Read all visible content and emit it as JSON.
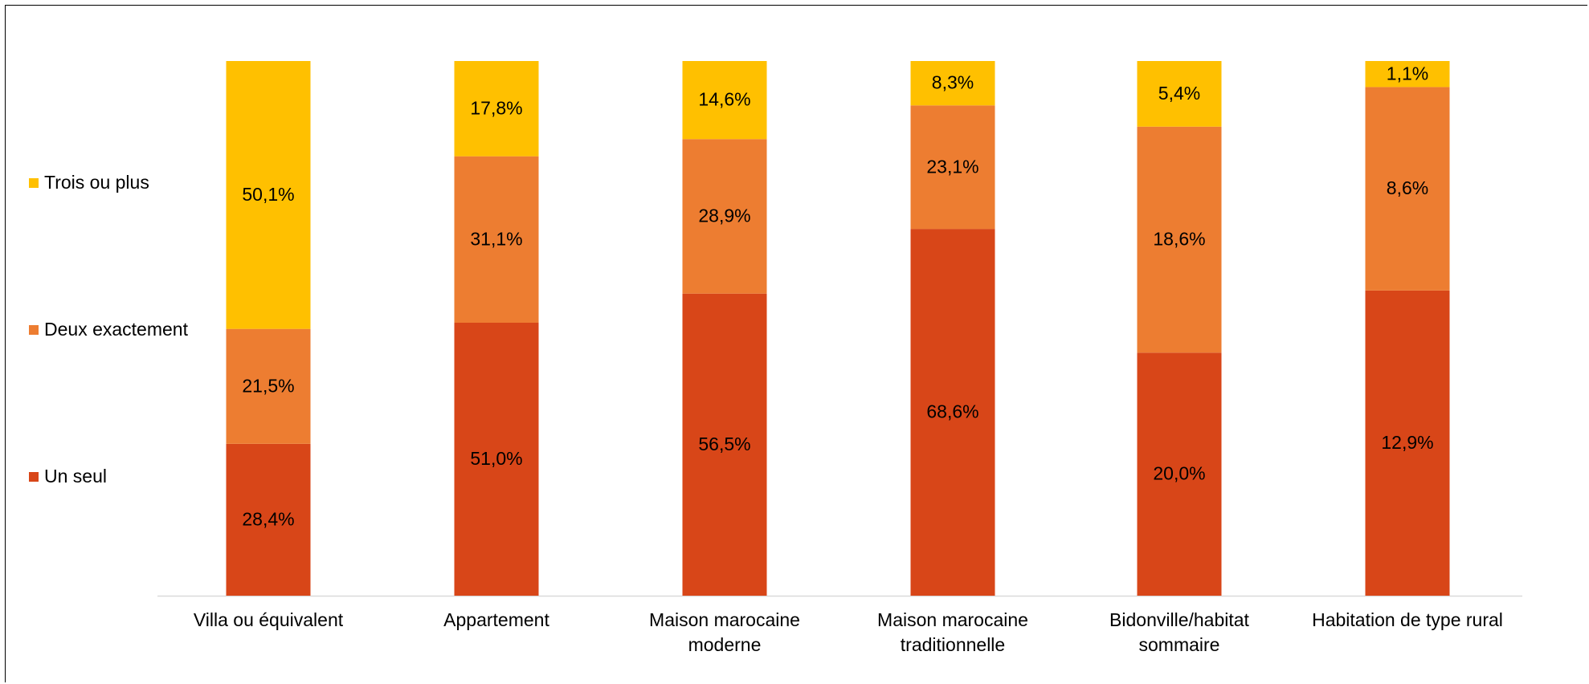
{
  "chart_data": {
    "type": "bar",
    "stacked": "percent",
    "categories": [
      "Villa ou équivalent",
      "Appartement",
      "Maison marocaine\nmoderne",
      "Maison marocaine\ntraditionnelle",
      "Bidonville/habitat\nsommaire",
      "Habitation de type rural"
    ],
    "series": [
      {
        "name": "Un seul",
        "color": "#d84618",
        "values": [
          28.4,
          51.0,
          56.5,
          68.6,
          20.0,
          12.9
        ],
        "value_labels": [
          "28,4%",
          "51,0%",
          "56,5%",
          "68,6%",
          "20,0%",
          "12,9%"
        ]
      },
      {
        "name": "Deux exactement",
        "color": "#ed7d31",
        "values": [
          21.5,
          31.1,
          28.9,
          23.1,
          18.6,
          8.6
        ],
        "value_labels": [
          "21,5%",
          "31,1%",
          "28,9%",
          "23,1%",
          "18,6%",
          "8,6%"
        ]
      },
      {
        "name": "Trois ou plus",
        "color": "#ffc000",
        "values": [
          50.1,
          17.8,
          14.6,
          8.3,
          5.4,
          1.1
        ],
        "value_labels": [
          "50,1%",
          "17,8%",
          "14,6%",
          "8,3%",
          "5,4%",
          "1,1%"
        ]
      }
    ],
    "legend": "left"
  }
}
